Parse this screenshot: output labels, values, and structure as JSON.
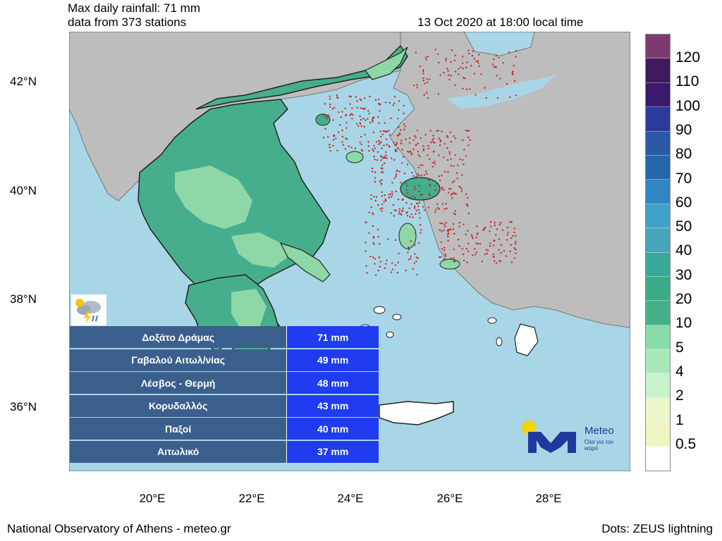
{
  "header": {
    "title_line1": "Max daily rainfall: 71 mm",
    "title_line2": "data from 373 stations",
    "timestamp": "13 Oct 2020 at 18:00 local time"
  },
  "axes": {
    "latitude_labels": [
      "42°N",
      "40°N",
      "38°N",
      "36°N"
    ],
    "longitude_labels": [
      "20°E",
      "22°E",
      "24°E",
      "26°E",
      "28°E"
    ]
  },
  "legend": {
    "labels": [
      "120",
      "110",
      "100",
      "90",
      "80",
      "70",
      "60",
      "50",
      "40",
      "30",
      "20",
      "10",
      "5",
      "4",
      "2",
      "1",
      "0.5"
    ],
    "colors": [
      "#7a3c6e",
      "#3e1a5c",
      "#3a1a6a",
      "#2a3b9c",
      "#2b5aa4",
      "#2466a8",
      "#2f86c2",
      "#3fa0c8",
      "#48a4b8",
      "#3aa898",
      "#3aaa88",
      "#45b088",
      "#88dca8",
      "#a8e8b8",
      "#c8f2cc",
      "#eaf8cc",
      "#f0f5c4",
      "#ffffff"
    ]
  },
  "stations_table": [
    {
      "station": "Δοξάτο Δράμας",
      "value": "71 mm"
    },
    {
      "station": "Γαβαλού Αιτωλ/νίας",
      "value": "49 mm"
    },
    {
      "station": "Λέσβος - Θερμή",
      "value": "48 mm"
    },
    {
      "station": "Κορυδαλλός",
      "value": "43 mm"
    },
    {
      "station": "Παξοί",
      "value": "40 mm"
    },
    {
      "station": "Αιτωλικό",
      "value": "37 mm"
    }
  ],
  "logo": {
    "name": "Meteo",
    "tagline": "Όλα για τον καιρό"
  },
  "footer": {
    "left": "National Observatory of Athens - meteo.gr",
    "right": "Dots: ZEUS lightning"
  },
  "colors": {
    "sea": "#a9d6e6",
    "land": "#bdbdbd",
    "rain_low": "#8ed8a8",
    "rain_mid": "#46ae8c",
    "lightning": "#c62828"
  }
}
